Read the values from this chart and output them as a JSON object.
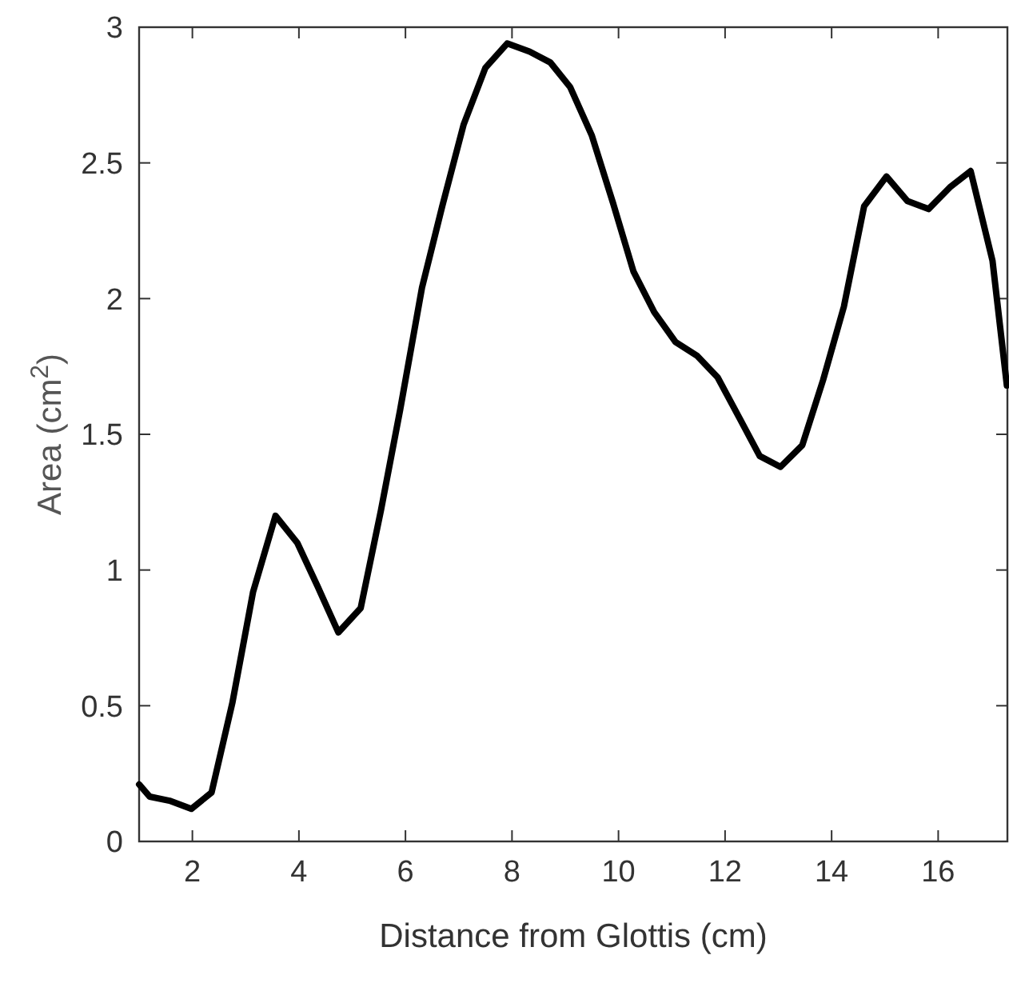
{
  "chart_data": {
    "type": "line",
    "xlabel": "Distance from Glottis (cm)",
    "ylabel": "Area (cm$^{2}$)",
    "xlim": [
      1,
      17.3
    ],
    "ylim": [
      0,
      3
    ],
    "xticks": [
      2,
      4,
      6,
      8,
      10,
      12,
      14,
      16
    ],
    "yticks": [
      0,
      0.5,
      1,
      1.5,
      2,
      2.5,
      3
    ],
    "grid": false,
    "marker": "none",
    "line_style": "solid",
    "series": [
      {
        "color": "#000000",
        "x": [
          1.0,
          1.2,
          1.57,
          1.98,
          2.36,
          2.75,
          3.14,
          3.56,
          3.97,
          4.35,
          4.74,
          5.16,
          5.54,
          5.9,
          6.31,
          6.69,
          7.09,
          7.5,
          7.91,
          8.33,
          8.72,
          9.09,
          9.5,
          9.9,
          10.28,
          10.67,
          11.07,
          11.47,
          11.86,
          12.27,
          12.65,
          13.04,
          13.45,
          13.84,
          14.23,
          14.61,
          15.03,
          15.42,
          15.82,
          16.22,
          16.61,
          17.02,
          17.29
        ],
        "values": [
          0.21,
          0.165,
          0.15,
          0.12,
          0.18,
          0.51,
          0.92,
          1.2,
          1.1,
          0.94,
          0.77,
          0.86,
          1.22,
          1.59,
          2.04,
          2.34,
          2.64,
          2.85,
          2.94,
          2.91,
          2.87,
          2.78,
          2.6,
          2.35,
          2.1,
          1.95,
          1.84,
          1.79,
          1.71,
          1.56,
          1.42,
          1.38,
          1.46,
          1.7,
          1.97,
          2.34,
          2.45,
          2.36,
          2.33,
          2.41,
          2.47,
          2.14,
          1.68
        ]
      }
    ]
  }
}
